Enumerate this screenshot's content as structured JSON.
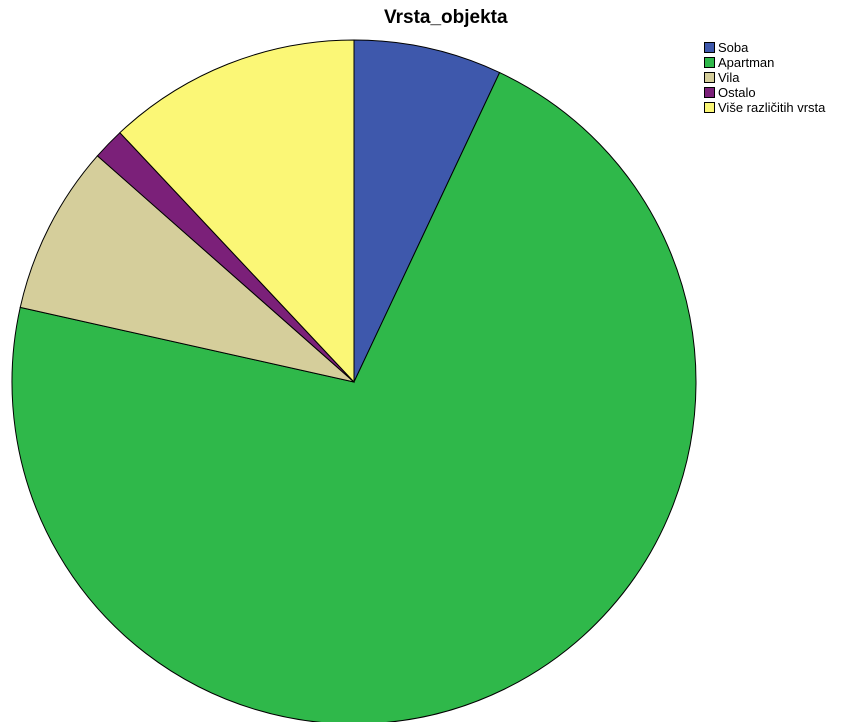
{
  "chart_data": {
    "type": "pie",
    "title": "Vrsta_objekta",
    "legend_position": "top-right",
    "slices": [
      {
        "label": "Soba",
        "value": 7.0,
        "color": "#3E58AC"
      },
      {
        "label": "Apartman",
        "value": 71.5,
        "color": "#2FB84A"
      },
      {
        "label": "Vila",
        "value": 8.0,
        "color": "#D5CE9B"
      },
      {
        "label": "Ostalo",
        "value": 1.5,
        "color": "#7B2079"
      },
      {
        "label": "Više različitih vrsta",
        "value": 12.0,
        "color": "#FBF776"
      }
    ]
  }
}
